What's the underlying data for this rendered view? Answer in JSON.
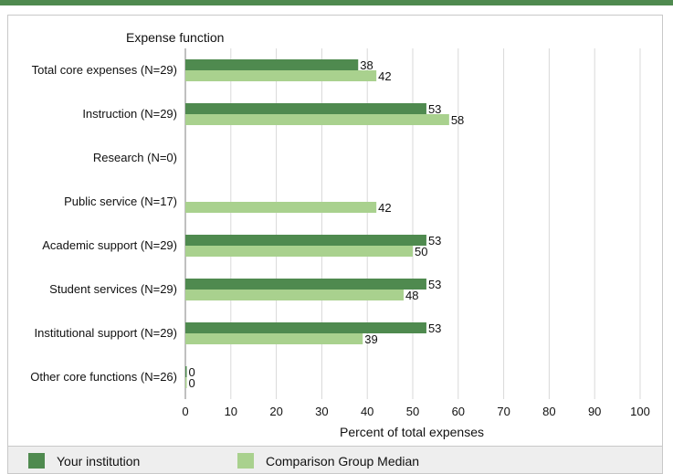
{
  "chart_data": {
    "type": "bar",
    "orientation": "horizontal",
    "title": "Expense function",
    "xlabel": "Percent of total expenses",
    "xlim": [
      0,
      100
    ],
    "xticks": [
      0,
      10,
      20,
      30,
      40,
      50,
      60,
      70,
      80,
      90,
      100
    ],
    "grid": true,
    "legend_position": "bottom",
    "categories": [
      "Total core expenses (N=29)",
      "Instruction (N=29)",
      "Research (N=0)",
      "Public service (N=17)",
      "Academic support (N=29)",
      "Student services (N=29)",
      "Institutional support (N=29)",
      "Other core functions (N=26)"
    ],
    "series": [
      {
        "name": "Your institution",
        "color": "#4f8a4f",
        "values": [
          38,
          53,
          null,
          null,
          53,
          53,
          53,
          0
        ]
      },
      {
        "name": "Comparison Group Median",
        "color": "#a9d18e",
        "values": [
          42,
          58,
          null,
          42,
          50,
          48,
          39,
          0
        ]
      }
    ]
  }
}
